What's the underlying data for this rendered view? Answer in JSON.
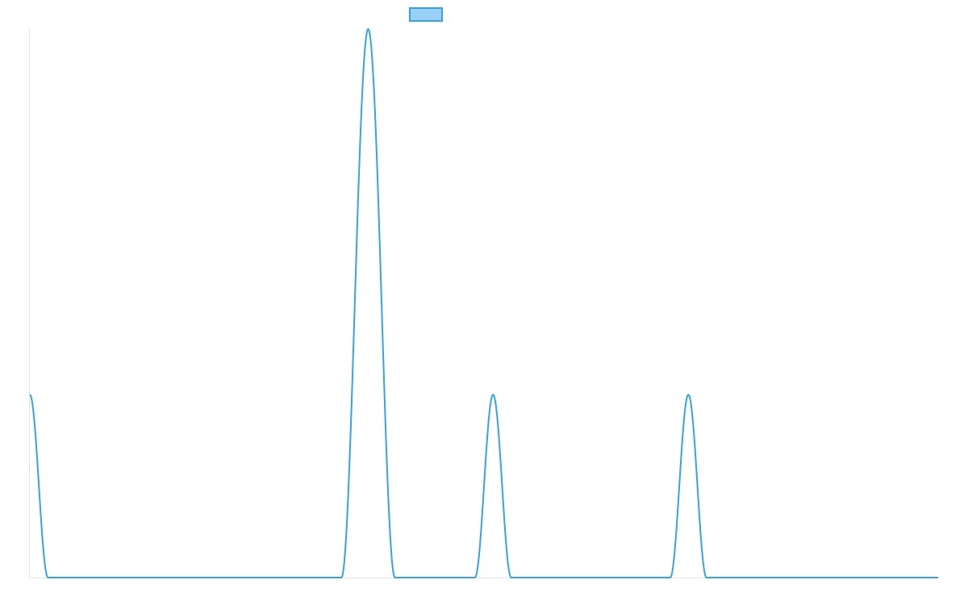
{
  "chart_data": {
    "type": "line",
    "title": "",
    "xlabel": "",
    "ylabel": "",
    "legend": {
      "placement": "top-center",
      "entries": [
        {
          "label": "",
          "fill_color": "#9ad0f5",
          "stroke_color": "#36a2eb"
        }
      ]
    },
    "grid": false,
    "xlim": [
      0,
      1000
    ],
    "ylim": [
      0,
      3
    ],
    "series": [
      {
        "color": "#36a2eb",
        "peaks": [
          {
            "center": 0,
            "height": 1,
            "half_width": 20
          },
          {
            "center": 372.5,
            "height": 3,
            "half_width": 29.5
          },
          {
            "center": 510,
            "height": 1,
            "half_width": 20
          },
          {
            "center": 725,
            "height": 1,
            "half_width": 20
          }
        ],
        "baseline": 0
      }
    ]
  }
}
